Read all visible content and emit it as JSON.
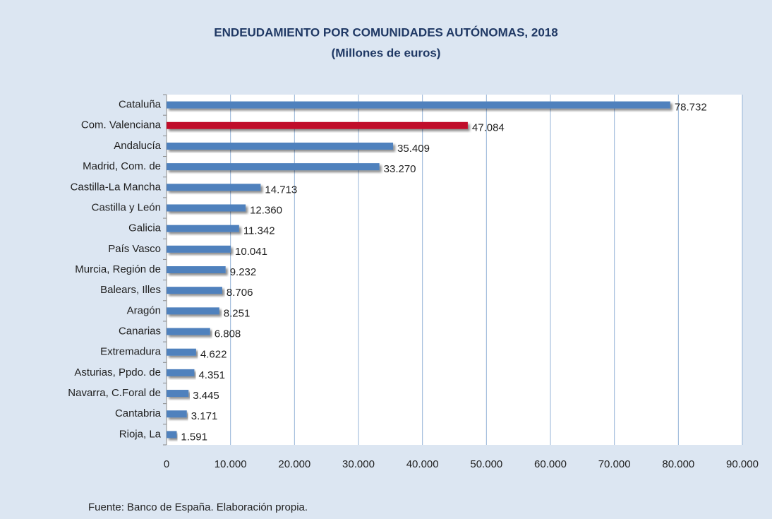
{
  "chart_data": {
    "type": "hbar",
    "title": "ENDEUDAMIENTO POR COMUNIDADES AUTÓNOMAS, 2018",
    "subtitle": "(Millones de euros)",
    "categories": [
      "Cataluña",
      "Com. Valenciana",
      "Andalucía",
      "Madrid, Com. de",
      "Castilla-La Mancha",
      "Castilla y León",
      "Galicia",
      "País Vasco",
      "Murcia, Región de",
      "Balears, Illes",
      "Aragón",
      "Canarias",
      "Extremadura",
      "Asturias, Ppdo. de",
      "Navarra, C.Foral de",
      "Cantabria",
      "Rioja, La"
    ],
    "values": [
      78732,
      47084,
      35409,
      33270,
      14713,
      12360,
      11342,
      10041,
      9232,
      8706,
      8251,
      6808,
      4622,
      4351,
      3445,
      3171,
      1591
    ],
    "value_labels": [
      "78.732",
      "47.084",
      "35.409",
      "33.270",
      "14.713",
      "12.360",
      "11.342",
      "10.041",
      "9.232",
      "8.706",
      "8.251",
      "6.808",
      "4.622",
      "4.351",
      "3.445",
      "3.171",
      "1.591"
    ],
    "colors": [
      "#4f81bd",
      "#c0102a",
      "#4f81bd",
      "#4f81bd",
      "#4f81bd",
      "#4f81bd",
      "#4f81bd",
      "#4f81bd",
      "#4f81bd",
      "#4f81bd",
      "#4f81bd",
      "#4f81bd",
      "#4f81bd",
      "#4f81bd",
      "#4f81bd",
      "#4f81bd",
      "#4f81bd"
    ],
    "xlim": [
      0,
      90000
    ],
    "xticks": [
      0,
      {
        "value": 10000,
        "label": "10.000"
      },
      {
        "value": 20000,
        "label": "20.000"
      },
      {
        "value": 30000,
        "label": "30.000"
      },
      {
        "value": 40000,
        "label": "40.000"
      },
      {
        "value": 50000,
        "label": "50.000"
      },
      {
        "value": 60000,
        "label": "60.000"
      },
      {
        "value": 70000,
        "label": "70.000"
      },
      {
        "value": 80000,
        "label": "80.000"
      },
      {
        "value": 90000,
        "label": "90.000"
      }
    ],
    "grid": true,
    "source": "Fuente: Banco de España. Elaboración propia."
  }
}
